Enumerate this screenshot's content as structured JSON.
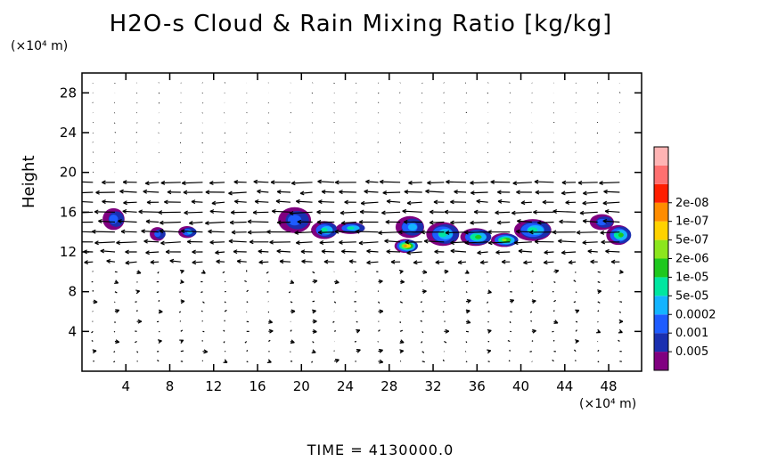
{
  "chart_data": {
    "type": "heatmap",
    "title": "H2O-s Cloud & Rain Mixing Ratio [kg/kg]",
    "ylabel": "Height",
    "y_unit": "(×10⁴ m)",
    "x_unit": "(×10⁴ m)",
    "xlim": [
      0,
      51
    ],
    "ylim": [
      0,
      30
    ],
    "xticks": [
      4,
      8,
      12,
      16,
      20,
      24,
      28,
      32,
      36,
      40,
      44,
      48
    ],
    "yticks": [
      4,
      8,
      12,
      16,
      20,
      24,
      28
    ],
    "colorbar": {
      "labels": [
        "0.005",
        "0.001",
        "0.0002",
        "5e-05",
        "1e-05",
        "2e-06",
        "5e-07",
        "1e-07",
        "2e-08"
      ],
      "colors": [
        "#800080",
        "#1a2fb0",
        "#1e5cff",
        "#14b4ff",
        "#00e6a0",
        "#1ec81e",
        "#8ce61e",
        "#ffd200",
        "#ff8c00",
        "#ff1e00",
        "#ff7070",
        "#ffb4b4"
      ]
    },
    "clouds": [
      {
        "x": 3.0,
        "y": 15.3,
        "w": 2.0,
        "h": 2.2,
        "level": 2
      },
      {
        "x": 7.0,
        "y": 13.8,
        "w": 1.4,
        "h": 1.4,
        "level": 2
      },
      {
        "x": 9.7,
        "y": 14.0,
        "w": 1.6,
        "h": 1.2,
        "level": 3
      },
      {
        "x": 19.5,
        "y": 15.2,
        "w": 3.0,
        "h": 2.6,
        "level": 2
      },
      {
        "x": 22.2,
        "y": 14.2,
        "w": 2.4,
        "h": 1.8,
        "level": 4
      },
      {
        "x": 24.6,
        "y": 14.4,
        "w": 2.6,
        "h": 1.2,
        "level": 4
      },
      {
        "x": 30.0,
        "y": 14.5,
        "w": 2.6,
        "h": 2.2,
        "level": 3
      },
      {
        "x": 29.6,
        "y": 12.6,
        "w": 2.0,
        "h": 1.4,
        "level": 8
      },
      {
        "x": 33.0,
        "y": 13.8,
        "w": 3.0,
        "h": 2.4,
        "level": 4
      },
      {
        "x": 36.0,
        "y": 13.5,
        "w": 2.8,
        "h": 1.8,
        "level": 5
      },
      {
        "x": 38.6,
        "y": 13.2,
        "w": 2.4,
        "h": 1.4,
        "level": 6
      },
      {
        "x": 41.2,
        "y": 14.2,
        "w": 3.4,
        "h": 2.2,
        "level": 4
      },
      {
        "x": 47.5,
        "y": 15.0,
        "w": 2.2,
        "h": 1.6,
        "level": 2
      },
      {
        "x": 49.0,
        "y": 13.7,
        "w": 2.2,
        "h": 2.0,
        "level": 5
      }
    ],
    "wind_bands": [
      {
        "y": 19.0,
        "u": -2.2
      },
      {
        "y": 18.0,
        "u": -2.0
      },
      {
        "y": 17.0,
        "u": -1.8
      },
      {
        "y": 16.0,
        "u": -2.4
      },
      {
        "y": 15.0,
        "u": -2.2
      },
      {
        "y": 14.0,
        "u": -2.6
      },
      {
        "y": 13.0,
        "u": -2.4
      },
      {
        "y": 12.0,
        "u": -1.6
      },
      {
        "y": 11.0,
        "u": -1.2
      }
    ]
  },
  "footer": {
    "time_label": "TIME = 4130000.0"
  }
}
